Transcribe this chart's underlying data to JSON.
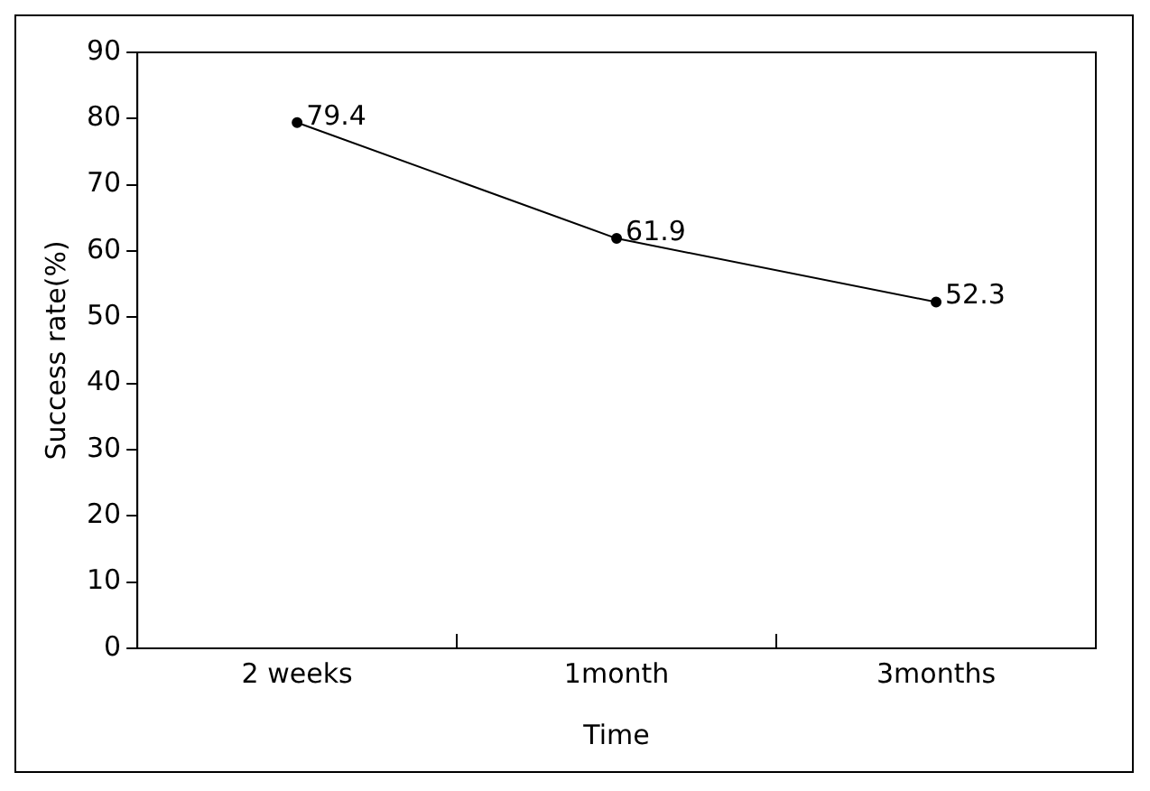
{
  "chart_data": {
    "type": "line",
    "xlabel": "Time",
    "ylabel": "Success rate(%)",
    "categories": [
      "2 weeks",
      "1month",
      "3months"
    ],
    "series": [
      {
        "color": "#000000",
        "values": [
          79.4,
          61.9,
          52.3
        ]
      }
    ],
    "ylim": [
      0,
      90
    ],
    "yticks": [
      0,
      10,
      20,
      30,
      40,
      50,
      60,
      70,
      80,
      90
    ],
    "grid": false,
    "legend": false,
    "marker": "circle",
    "line_style": "solid",
    "data_labels": true
  }
}
